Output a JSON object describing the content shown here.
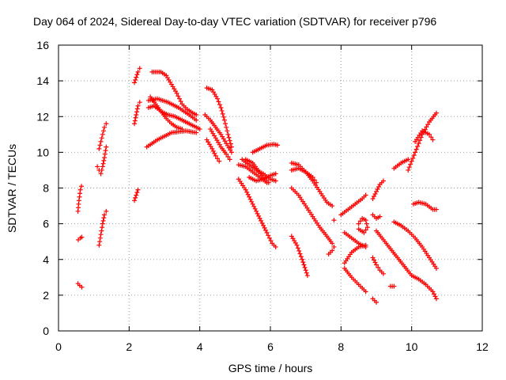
{
  "chart_data": {
    "type": "scatter",
    "title": "Day 064 of 2024, Sidereal Day-to-day VTEC variation (SDTVAR) for receiver p796",
    "xlabel": "GPS time / hours",
    "ylabel": "SDTVAR / TECUs",
    "xlim": [
      0,
      12
    ],
    "ylim": [
      0,
      16
    ],
    "x_ticks": [
      "0",
      "2",
      "4",
      "6",
      "8",
      "10",
      "12"
    ],
    "y_ticks": [
      "0",
      "2",
      "4",
      "6",
      "8",
      "10",
      "12",
      "14",
      "16"
    ],
    "grid": true,
    "marker": "plus",
    "color": "#ff0000",
    "series": [
      {
        "tracks": [
          [
            [
              0.55,
              6.7
            ],
            [
              0.58,
              7.3
            ],
            [
              0.62,
              7.9
            ],
            [
              0.65,
              8.1
            ]
          ],
          [
            [
              0.56,
              5.1
            ],
            [
              0.62,
              5.2
            ],
            [
              0.66,
              5.25
            ]
          ],
          [
            [
              0.55,
              2.65
            ],
            [
              0.6,
              2.55
            ],
            [
              0.66,
              2.45
            ]
          ],
          [
            [
              1.15,
              4.8
            ],
            [
              1.2,
              5.4
            ],
            [
              1.25,
              6.0
            ],
            [
              1.3,
              6.5
            ],
            [
              1.35,
              6.7
            ]
          ],
          [
            [
              1.1,
              9.2
            ],
            [
              1.15,
              9.0
            ],
            [
              1.2,
              8.8
            ],
            [
              1.25,
              9.2
            ],
            [
              1.3,
              9.7
            ],
            [
              1.35,
              10.3
            ]
          ],
          [
            [
              1.15,
              10.2
            ],
            [
              1.2,
              10.6
            ],
            [
              1.25,
              11.0
            ],
            [
              1.3,
              11.4
            ],
            [
              1.35,
              11.6
            ]
          ],
          [
            [
              2.15,
              7.3
            ],
            [
              2.2,
              7.6
            ],
            [
              2.25,
              7.9
            ]
          ],
          [
            [
              2.15,
              11.6
            ],
            [
              2.2,
              12.1
            ],
            [
              2.25,
              12.6
            ],
            [
              2.3,
              12.8
            ]
          ],
          [
            [
              2.15,
              13.9
            ],
            [
              2.2,
              14.2
            ],
            [
              2.25,
              14.5
            ],
            [
              2.3,
              14.7
            ]
          ],
          [
            [
              2.5,
              10.3
            ],
            [
              2.8,
              10.7
            ],
            [
              3.2,
              11.1
            ],
            [
              3.6,
              11.2
            ],
            [
              3.9,
              11.1
            ]
          ],
          [
            [
              2.55,
              12.5
            ],
            [
              2.7,
              12.6
            ],
            [
              2.9,
              12.3
            ],
            [
              3.1,
              12.1
            ],
            [
              3.3,
              12.0
            ],
            [
              3.5,
              11.8
            ],
            [
              3.8,
              11.5
            ],
            [
              4.0,
              11.3
            ]
          ],
          [
            [
              2.55,
              12.9
            ],
            [
              2.8,
              13.0
            ],
            [
              3.1,
              12.8
            ],
            [
              3.4,
              12.5
            ],
            [
              3.7,
              12.1
            ],
            [
              3.9,
              11.8
            ]
          ],
          [
            [
              2.65,
              14.5
            ],
            [
              2.9,
              14.5
            ],
            [
              3.05,
              14.3
            ],
            [
              3.2,
              13.8
            ],
            [
              3.35,
              13.3
            ],
            [
              3.5,
              12.7
            ],
            [
              3.65,
              12.4
            ],
            [
              3.8,
              12.2
            ],
            [
              3.9,
              12.1
            ]
          ],
          [
            [
              2.6,
              13.1
            ],
            [
              2.75,
              12.7
            ],
            [
              2.9,
              12.3
            ],
            [
              3.05,
              11.9
            ],
            [
              3.2,
              11.6
            ],
            [
              3.35,
              11.4
            ],
            [
              3.5,
              11.3
            ]
          ],
          [
            [
              4.15,
              12.1
            ],
            [
              4.3,
              11.8
            ],
            [
              4.45,
              11.4
            ],
            [
              4.6,
              11.0
            ],
            [
              4.75,
              10.5
            ],
            [
              4.9,
              10.0
            ]
          ],
          [
            [
              4.2,
              13.6
            ],
            [
              4.35,
              13.5
            ],
            [
              4.5,
              13.0
            ],
            [
              4.6,
              12.5
            ],
            [
              4.7,
              11.8
            ],
            [
              4.8,
              11.0
            ],
            [
              4.9,
              10.3
            ]
          ],
          [
            [
              4.2,
              10.7
            ],
            [
              4.35,
              10.2
            ],
            [
              4.45,
              9.8
            ],
            [
              4.55,
              9.5
            ]
          ],
          [
            [
              4.3,
              11.3
            ],
            [
              4.45,
              10.8
            ],
            [
              4.6,
              10.3
            ],
            [
              4.75,
              9.9
            ],
            [
              4.85,
              9.6
            ]
          ],
          [
            [
              5.1,
              8.5
            ],
            [
              5.3,
              7.9
            ],
            [
              5.5,
              7.1
            ],
            [
              5.7,
              6.3
            ],
            [
              5.9,
              5.5
            ],
            [
              6.05,
              4.9
            ],
            [
              6.15,
              4.7
            ]
          ],
          [
            [
              5.2,
              9.6
            ],
            [
              5.4,
              9.3
            ],
            [
              5.6,
              9.0
            ],
            [
              5.8,
              8.8
            ],
            [
              6.0,
              8.5
            ],
            [
              6.15,
              8.4
            ]
          ],
          [
            [
              5.1,
              9.3
            ],
            [
              5.3,
              9.2
            ],
            [
              5.5,
              8.9
            ],
            [
              5.7,
              8.6
            ],
            [
              5.9,
              8.3
            ]
          ],
          [
            [
              5.4,
              8.6
            ],
            [
              5.6,
              8.4
            ],
            [
              5.8,
              8.5
            ],
            [
              6.0,
              8.7
            ],
            [
              6.15,
              8.8
            ]
          ],
          [
            [
              5.5,
              10.0
            ],
            [
              5.7,
              10.2
            ],
            [
              5.9,
              10.4
            ],
            [
              6.1,
              10.45
            ],
            [
              6.2,
              10.4
            ]
          ],
          [
            [
              5.3,
              9.6
            ],
            [
              5.5,
              9.4
            ],
            [
              5.65,
              9.0
            ],
            [
              5.8,
              8.6
            ],
            [
              5.95,
              8.3
            ]
          ],
          [
            [
              6.6,
              9.0
            ],
            [
              6.8,
              9.1
            ],
            [
              7.0,
              8.9
            ],
            [
              7.2,
              8.6
            ],
            [
              7.3,
              8.3
            ]
          ],
          [
            [
              6.6,
              9.4
            ],
            [
              6.8,
              9.3
            ],
            [
              7.0,
              8.9
            ],
            [
              7.2,
              8.4
            ],
            [
              7.4,
              7.8
            ],
            [
              7.6,
              7.2
            ],
            [
              7.75,
              7.0
            ]
          ],
          [
            [
              6.6,
              8.0
            ],
            [
              6.8,
              7.6
            ],
            [
              7.0,
              7.0
            ],
            [
              7.2,
              6.4
            ],
            [
              7.4,
              5.8
            ],
            [
              7.6,
              5.3
            ],
            [
              7.75,
              4.9
            ]
          ],
          [
            [
              6.6,
              5.3
            ],
            [
              6.75,
              4.8
            ],
            [
              6.9,
              4.0
            ],
            [
              7.0,
              3.4
            ],
            [
              7.05,
              3.1
            ]
          ],
          [
            [
              7.8,
              6.2
            ]
          ],
          [
            [
              7.65,
              4.3
            ],
            [
              7.75,
              4.5
            ],
            [
              7.8,
              4.7
            ]
          ],
          [
            [
              8.0,
              6.5
            ],
            [
              8.2,
              6.8
            ],
            [
              8.4,
              7.1
            ],
            [
              8.6,
              7.4
            ],
            [
              8.7,
              7.6
            ]
          ],
          [
            [
              8.1,
              5.5
            ],
            [
              8.3,
              5.2
            ],
            [
              8.5,
              4.9
            ],
            [
              8.7,
              4.7
            ]
          ],
          [
            [
              8.1,
              3.8
            ],
            [
              8.3,
              4.4
            ],
            [
              8.5,
              4.7
            ],
            [
              8.7,
              4.8
            ]
          ],
          [
            [
              8.1,
              3.5
            ],
            [
              8.3,
              3.0
            ],
            [
              8.5,
              2.6
            ],
            [
              8.7,
              2.2
            ]
          ],
          [
            [
              8.5,
              6.0
            ],
            [
              8.6,
              6.3
            ],
            [
              8.7,
              6.2
            ],
            [
              8.75,
              5.8
            ],
            [
              8.65,
              5.5
            ],
            [
              8.5,
              5.7
            ]
          ],
          [
            [
              8.9,
              6.5
            ],
            [
              9.0,
              6.3
            ],
            [
              9.1,
              6.4
            ]
          ],
          [
            [
              8.9,
              7.4
            ],
            [
              9.0,
              7.8
            ],
            [
              9.1,
              8.2
            ],
            [
              9.2,
              8.4
            ]
          ],
          [
            [
              8.9,
              4.1
            ],
            [
              9.0,
              3.7
            ],
            [
              9.1,
              3.4
            ],
            [
              9.2,
              3.2
            ]
          ],
          [
            [
              8.9,
              1.8
            ],
            [
              9.0,
              1.6
            ]
          ],
          [
            [
              9.0,
              5.6
            ],
            [
              9.2,
              5.1
            ],
            [
              9.4,
              4.6
            ],
            [
              9.6,
              4.1
            ],
            [
              9.8,
              3.6
            ],
            [
              10.0,
              3.1
            ],
            [
              10.2,
              2.9
            ],
            [
              10.4,
              2.6
            ],
            [
              10.6,
              2.2
            ],
            [
              10.7,
              1.8
            ]
          ],
          [
            [
              9.4,
              2.5
            ],
            [
              9.5,
              2.5
            ]
          ],
          [
            [
              9.5,
              6.1
            ],
            [
              9.7,
              5.9
            ],
            [
              9.9,
              5.6
            ],
            [
              10.1,
              5.2
            ],
            [
              10.3,
              4.7
            ],
            [
              10.5,
              4.1
            ],
            [
              10.7,
              3.5
            ]
          ],
          [
            [
              9.5,
              9.1
            ],
            [
              9.7,
              9.4
            ],
            [
              9.9,
              9.6
            ]
          ],
          [
            [
              9.9,
              9.0
            ],
            [
              10.1,
              10.0
            ],
            [
              10.3,
              11.0
            ],
            [
              10.5,
              11.7
            ],
            [
              10.7,
              12.2
            ]
          ],
          [
            [
              10.1,
              10.6
            ],
            [
              10.3,
              11.2
            ],
            [
              10.5,
              11.0
            ],
            [
              10.6,
              10.7
            ]
          ],
          [
            [
              10.05,
              7.1
            ],
            [
              10.2,
              7.2
            ],
            [
              10.4,
              7.1
            ],
            [
              10.6,
              6.8
            ],
            [
              10.7,
              6.8
            ]
          ]
        ]
      }
    ]
  }
}
